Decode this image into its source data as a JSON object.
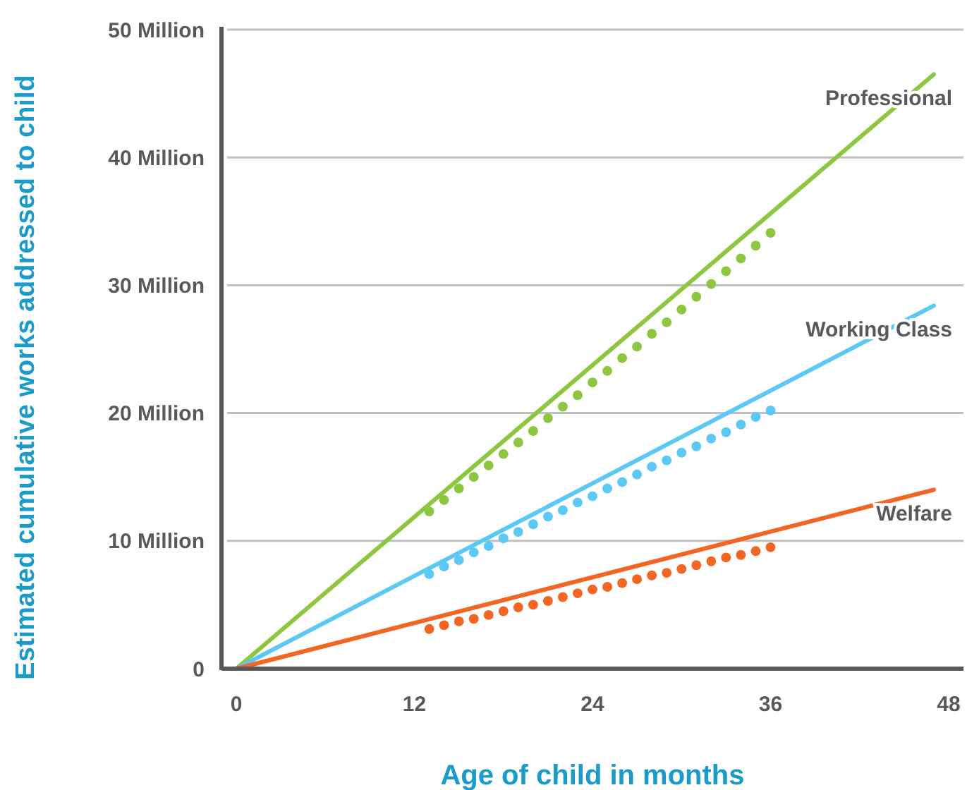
{
  "chart_data": {
    "type": "line",
    "xlabel": "Age of child in months",
    "ylabel": "Estimated cumulative works addressed to child",
    "xlim": [
      -1,
      49
    ],
    "xticks": [
      0,
      12,
      24,
      36,
      48
    ],
    "ylim": [
      0,
      50
    ],
    "yticks": [
      {
        "value": 0,
        "label": "0"
      },
      {
        "value": 10,
        "label": "10 Million"
      },
      {
        "value": 20,
        "label": "20 Million"
      },
      {
        "value": 30,
        "label": "30 Million"
      },
      {
        "value": 40,
        "label": "40 Million"
      },
      {
        "value": 50,
        "label": "50 Million"
      }
    ],
    "grid": "y",
    "series": [
      {
        "name": "Professional",
        "color": "#8dc63f",
        "x": [
          0,
          47
        ],
        "values": [
          0,
          46.5
        ]
      },
      {
        "name": "Working Class",
        "color": "#5bc8f5",
        "x": [
          0,
          47
        ],
        "values": [
          0,
          28.4
        ]
      },
      {
        "name": "Welfare",
        "color": "#f26522",
        "x": [
          0,
          47
        ],
        "values": [
          0,
          14
        ]
      },
      {
        "type": "scatter",
        "marker": "circle",
        "color": "#8dc63f",
        "x": [
          13,
          14,
          15,
          16,
          17,
          18,
          19,
          20,
          21,
          22,
          23,
          24,
          25,
          26,
          27,
          28,
          29,
          30,
          31,
          32,
          33,
          34,
          35,
          36
        ],
        "values": [
          12.3,
          13.2,
          14.1,
          15.0,
          15.9,
          16.8,
          17.7,
          18.6,
          19.6,
          20.5,
          21.4,
          22.4,
          23.3,
          24.3,
          25.2,
          26.2,
          27.1,
          28.1,
          29.1,
          30.1,
          31.1,
          32.1,
          33.1,
          34.1
        ]
      },
      {
        "type": "scatter",
        "marker": "circle",
        "color": "#5bc8f5",
        "x": [
          13,
          14,
          15,
          16,
          17,
          18,
          19,
          20,
          21,
          22,
          23,
          24,
          25,
          26,
          27,
          28,
          29,
          30,
          31,
          32,
          33,
          34,
          35,
          36
        ],
        "values": [
          7.4,
          8.0,
          8.5,
          9.1,
          9.6,
          10.2,
          10.7,
          11.3,
          11.9,
          12.4,
          13.0,
          13.5,
          14.1,
          14.6,
          15.2,
          15.8,
          16.3,
          16.9,
          17.4,
          18.0,
          18.5,
          19.1,
          19.7,
          20.2
        ]
      },
      {
        "type": "scatter",
        "marker": "circle",
        "color": "#f26522",
        "x": [
          13,
          14,
          15,
          16,
          17,
          18,
          19,
          20,
          21,
          22,
          23,
          24,
          25,
          26,
          27,
          28,
          29,
          30,
          31,
          32,
          33,
          34,
          35,
          36
        ],
        "values": [
          3.1,
          3.4,
          3.7,
          3.9,
          4.2,
          4.5,
          4.8,
          5.0,
          5.3,
          5.6,
          5.9,
          6.2,
          6.4,
          6.7,
          7.0,
          7.3,
          7.5,
          7.8,
          8.1,
          8.4,
          8.7,
          8.9,
          9.2,
          9.5
        ]
      }
    ]
  }
}
